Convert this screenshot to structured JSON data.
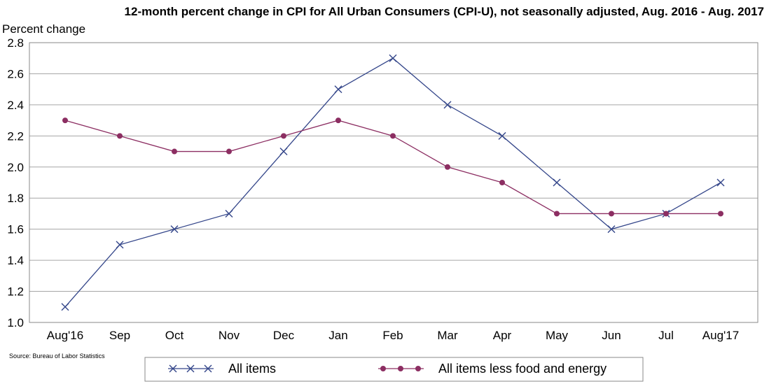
{
  "chart_data": {
    "type": "line",
    "title": "12-month percent change in CPI for All Urban Consumers (CPI-U), not seasonally adjusted, Aug. 2016 - Aug. 2017",
    "ylabel": "Percent change",
    "xlabel": "",
    "categories": [
      "Aug'16",
      "Sep",
      "Oct",
      "Nov",
      "Dec",
      "Jan",
      "Feb",
      "Mar",
      "Apr",
      "May",
      "Jun",
      "Jul",
      "Aug'17"
    ],
    "ylim": [
      1.0,
      2.8
    ],
    "yticks": [
      "1.0",
      "1.2",
      "1.4",
      "1.6",
      "1.8",
      "2.0",
      "2.2",
      "2.4",
      "2.6",
      "2.8"
    ],
    "grid": true,
    "legend_position": "bottom",
    "series": [
      {
        "name": "All items",
        "color": "#34468a",
        "marker": "x",
        "values": [
          1.1,
          1.5,
          1.6,
          1.7,
          2.1,
          2.5,
          2.7,
          2.4,
          2.2,
          1.9,
          1.6,
          1.7,
          1.9
        ]
      },
      {
        "name": "All items less food and energy",
        "color": "#8c2e62",
        "marker": "circle",
        "values": [
          2.3,
          2.2,
          2.1,
          2.1,
          2.2,
          2.3,
          2.2,
          2.0,
          1.9,
          1.7,
          1.7,
          1.7,
          1.7
        ]
      }
    ],
    "source": "Source: Bureau of Labor Statistics"
  }
}
